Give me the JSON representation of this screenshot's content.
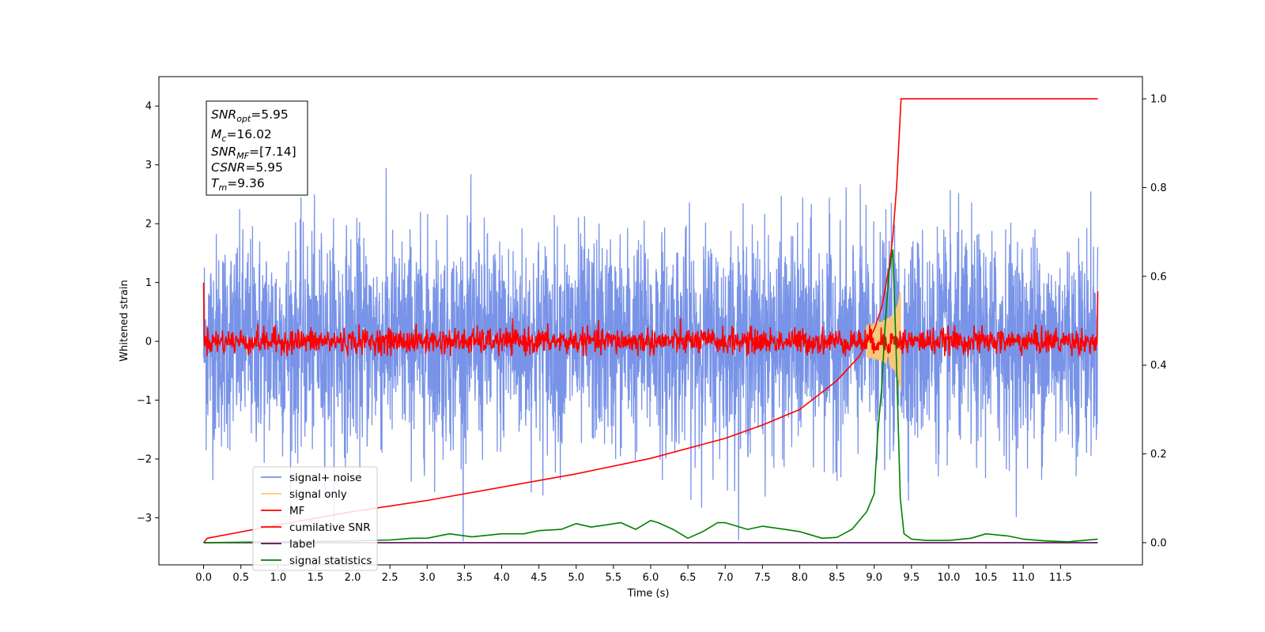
{
  "chart_data": {
    "type": "line",
    "title": "",
    "xlabel": "Time (s)",
    "ylabel": "Whitened strain",
    "y2label": "",
    "xlim": [
      -0.6,
      12.6
    ],
    "ylim": [
      -3.8,
      4.5
    ],
    "y2lim": [
      -0.05,
      1.05
    ],
    "xticks": [
      0.0,
      0.5,
      1.0,
      1.5,
      2.0,
      2.5,
      3.0,
      3.5,
      4.0,
      4.5,
      5.0,
      5.5,
      6.0,
      6.5,
      7.0,
      7.5,
      8.0,
      8.5,
      9.0,
      9.5,
      10.0,
      10.5,
      11.0,
      11.5
    ],
    "yticks": [
      -3,
      -2,
      -1,
      0,
      1,
      2,
      3,
      4
    ],
    "y2ticks": [
      0.0,
      0.2,
      0.4,
      0.6,
      0.8,
      1.0
    ],
    "grid": false,
    "legend_position": "lower-left",
    "series": [
      {
        "name": "signal+ noise",
        "color": "#7893e7",
        "axis": "left",
        "style": "noise",
        "description_values": {
          "x_start": 0.0,
          "x_end": 12.0,
          "mean": 0.0,
          "std": 0.9
        }
      },
      {
        "name": "signal only",
        "color": "#f5c97a",
        "axis": "left",
        "style": "chirp",
        "description_values": {
          "x_start": 8.9,
          "x_end": 9.36,
          "peak": 0.85
        }
      },
      {
        "name": "MF",
        "color": "#ff0000",
        "axis": "left",
        "style": "mf",
        "description_values": {
          "x_start": 0.0,
          "x_end": 12.0,
          "std": 0.11,
          "start_value": 1.0,
          "end_value": 0.85
        }
      },
      {
        "name": "cumilative SNR",
        "color": "#ff0000",
        "axis": "right",
        "x": [
          0.0,
          0.05,
          1.0,
          2.0,
          3.0,
          4.0,
          5.0,
          6.0,
          7.0,
          7.5,
          8.0,
          8.5,
          8.8,
          9.0,
          9.1,
          9.2,
          9.25,
          9.3,
          9.36,
          10.0,
          11.0,
          12.0
        ],
        "values": [
          0.0,
          0.01,
          0.04,
          0.07,
          0.095,
          0.125,
          0.155,
          0.19,
          0.235,
          0.265,
          0.3,
          0.365,
          0.42,
          0.48,
          0.53,
          0.62,
          0.69,
          0.8,
          1.0,
          1.0,
          1.0,
          1.0
        ]
      },
      {
        "name": "label",
        "color": "#5a0a5a",
        "axis": "right",
        "x": [
          0.0,
          12.0
        ],
        "values": [
          0.0,
          0.0
        ]
      },
      {
        "name": "signal statistics",
        "color": "#008000",
        "axis": "right",
        "x": [
          0.0,
          1.0,
          2.0,
          2.5,
          2.8,
          3.0,
          3.3,
          3.6,
          4.0,
          4.3,
          4.5,
          4.8,
          5.0,
          5.2,
          5.4,
          5.6,
          5.8,
          6.0,
          6.1,
          6.3,
          6.5,
          6.7,
          6.9,
          7.0,
          7.3,
          7.5,
          7.8,
          8.0,
          8.3,
          8.5,
          8.7,
          8.9,
          9.0,
          9.05,
          9.1,
          9.15,
          9.2,
          9.25,
          9.3,
          9.35,
          9.4,
          9.5,
          9.7,
          10.0,
          10.3,
          10.5,
          10.8,
          11.0,
          11.3,
          11.6,
          12.0
        ],
        "values": [
          0.0,
          0.002,
          0.004,
          0.006,
          0.01,
          0.01,
          0.02,
          0.013,
          0.02,
          0.02,
          0.027,
          0.03,
          0.043,
          0.035,
          0.04,
          0.045,
          0.03,
          0.05,
          0.045,
          0.03,
          0.01,
          0.025,
          0.045,
          0.045,
          0.03,
          0.037,
          0.03,
          0.025,
          0.01,
          0.012,
          0.03,
          0.07,
          0.11,
          0.25,
          0.35,
          0.5,
          0.61,
          0.66,
          0.4,
          0.1,
          0.02,
          0.008,
          0.005,
          0.005,
          0.01,
          0.02,
          0.015,
          0.008,
          0.004,
          0.002,
          0.008
        ]
      }
    ]
  },
  "info_box": {
    "line1_sym": "SNR",
    "line1_sub": "opt",
    "line1_val": "=5.95",
    "line2_sym": "M",
    "line2_sub": "c",
    "line2_val": "=16.02",
    "line3_sym": "SNR",
    "line3_sub": "MF",
    "line3_val": "=[7.14]",
    "line4_sym": "CSNR",
    "line4_val": "=5.95",
    "line5_sym": "T",
    "line5_sub": "m",
    "line5_val": "=9.36"
  }
}
